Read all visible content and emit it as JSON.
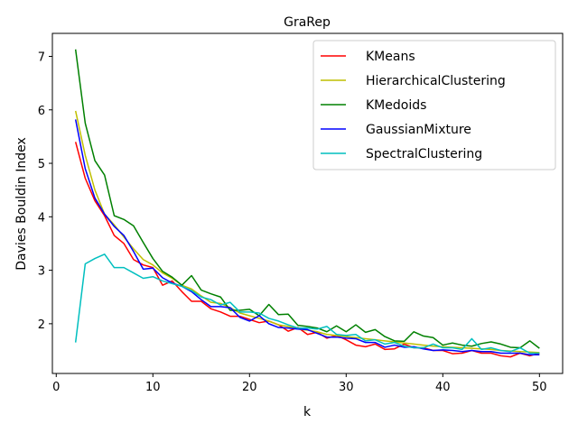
{
  "chart_data": {
    "type": "line",
    "title": "GraRep",
    "xlabel": "k",
    "ylabel": "Davies Bouldin Index",
    "xlim": [
      -0.4,
      52.4
    ],
    "ylim": [
      1.07,
      7.43
    ],
    "xticks": [
      0,
      10,
      20,
      30,
      40,
      50
    ],
    "yticks": [
      2,
      3,
      4,
      5,
      6,
      7
    ],
    "grid": false,
    "legend_position": "top-right",
    "x": [
      2,
      3,
      4,
      5,
      6,
      7,
      8,
      9,
      10,
      11,
      12,
      13,
      14,
      15,
      16,
      17,
      18,
      19,
      20,
      21,
      22,
      23,
      24,
      25,
      26,
      27,
      28,
      29,
      30,
      31,
      32,
      33,
      34,
      35,
      36,
      37,
      38,
      39,
      40,
      41,
      42,
      43,
      44,
      45,
      46,
      47,
      48,
      49,
      50
    ],
    "series": [
      {
        "name": "KMeans",
        "color": "#ff0000",
        "values": [
          5.4,
          4.72,
          4.3,
          4.02,
          3.65,
          3.5,
          3.2,
          3.1,
          3.05,
          2.72,
          2.8,
          2.6,
          2.42,
          2.42,
          2.28,
          2.22,
          2.14,
          2.14,
          2.08,
          2.02,
          2.05,
          1.98,
          1.86,
          1.93,
          1.8,
          1.84,
          1.73,
          1.78,
          1.7,
          1.6,
          1.57,
          1.62,
          1.52,
          1.53,
          1.62,
          1.55,
          1.55,
          1.5,
          1.5,
          1.44,
          1.45,
          1.5,
          1.45,
          1.45,
          1.4,
          1.38,
          1.45,
          1.4,
          1.45
        ]
      },
      {
        "name": "HierarchicalClustering",
        "color": "#bfbf00",
        "values": [
          5.98,
          5.15,
          4.5,
          4.05,
          3.85,
          3.62,
          3.4,
          3.2,
          3.1,
          2.95,
          2.85,
          2.72,
          2.65,
          2.52,
          2.4,
          2.38,
          2.3,
          2.2,
          2.15,
          2.1,
          2.05,
          1.98,
          1.95,
          1.9,
          1.88,
          1.85,
          1.8,
          1.78,
          1.76,
          1.74,
          1.72,
          1.7,
          1.68,
          1.66,
          1.64,
          1.62,
          1.6,
          1.58,
          1.57,
          1.56,
          1.55,
          1.54,
          1.53,
          1.52,
          1.5,
          1.49,
          1.48,
          1.47,
          1.46
        ]
      },
      {
        "name": "KMedoids",
        "color": "#008000",
        "values": [
          7.13,
          5.75,
          5.05,
          4.78,
          4.02,
          3.95,
          3.83,
          3.52,
          3.22,
          2.98,
          2.87,
          2.72,
          2.9,
          2.63,
          2.56,
          2.5,
          2.25,
          2.25,
          2.27,
          2.15,
          2.36,
          2.17,
          2.18,
          1.97,
          1.95,
          1.92,
          1.85,
          1.96,
          1.85,
          1.98,
          1.84,
          1.89,
          1.76,
          1.68,
          1.67,
          1.85,
          1.77,
          1.74,
          1.6,
          1.64,
          1.6,
          1.58,
          1.63,
          1.66,
          1.62,
          1.56,
          1.55,
          1.68,
          1.54
        ]
      },
      {
        "name": "GaussianMixture",
        "color": "#0000ff",
        "values": [
          5.82,
          4.9,
          4.35,
          4.05,
          3.82,
          3.65,
          3.35,
          3.02,
          3.04,
          2.86,
          2.76,
          2.7,
          2.6,
          2.45,
          2.32,
          2.32,
          2.3,
          2.12,
          2.05,
          2.15,
          2.0,
          1.93,
          1.92,
          1.9,
          1.89,
          1.82,
          1.75,
          1.75,
          1.73,
          1.72,
          1.65,
          1.65,
          1.56,
          1.6,
          1.56,
          1.57,
          1.53,
          1.5,
          1.51,
          1.5,
          1.48,
          1.5,
          1.48,
          1.48,
          1.45,
          1.45,
          1.45,
          1.42,
          1.42
        ]
      },
      {
        "name": "SpectralClustering",
        "color": "#00bfbf",
        "values": [
          1.65,
          3.12,
          3.22,
          3.3,
          3.05,
          3.05,
          2.95,
          2.85,
          2.88,
          2.8,
          2.75,
          2.7,
          2.62,
          2.5,
          2.45,
          2.35,
          2.4,
          2.22,
          2.22,
          2.2,
          2.1,
          2.05,
          1.98,
          1.92,
          1.92,
          1.9,
          1.95,
          1.8,
          1.78,
          1.8,
          1.68,
          1.7,
          1.62,
          1.65,
          1.58,
          1.55,
          1.55,
          1.62,
          1.55,
          1.55,
          1.52,
          1.72,
          1.52,
          1.55,
          1.5,
          1.48,
          1.55,
          1.45,
          1.45
        ]
      }
    ]
  }
}
